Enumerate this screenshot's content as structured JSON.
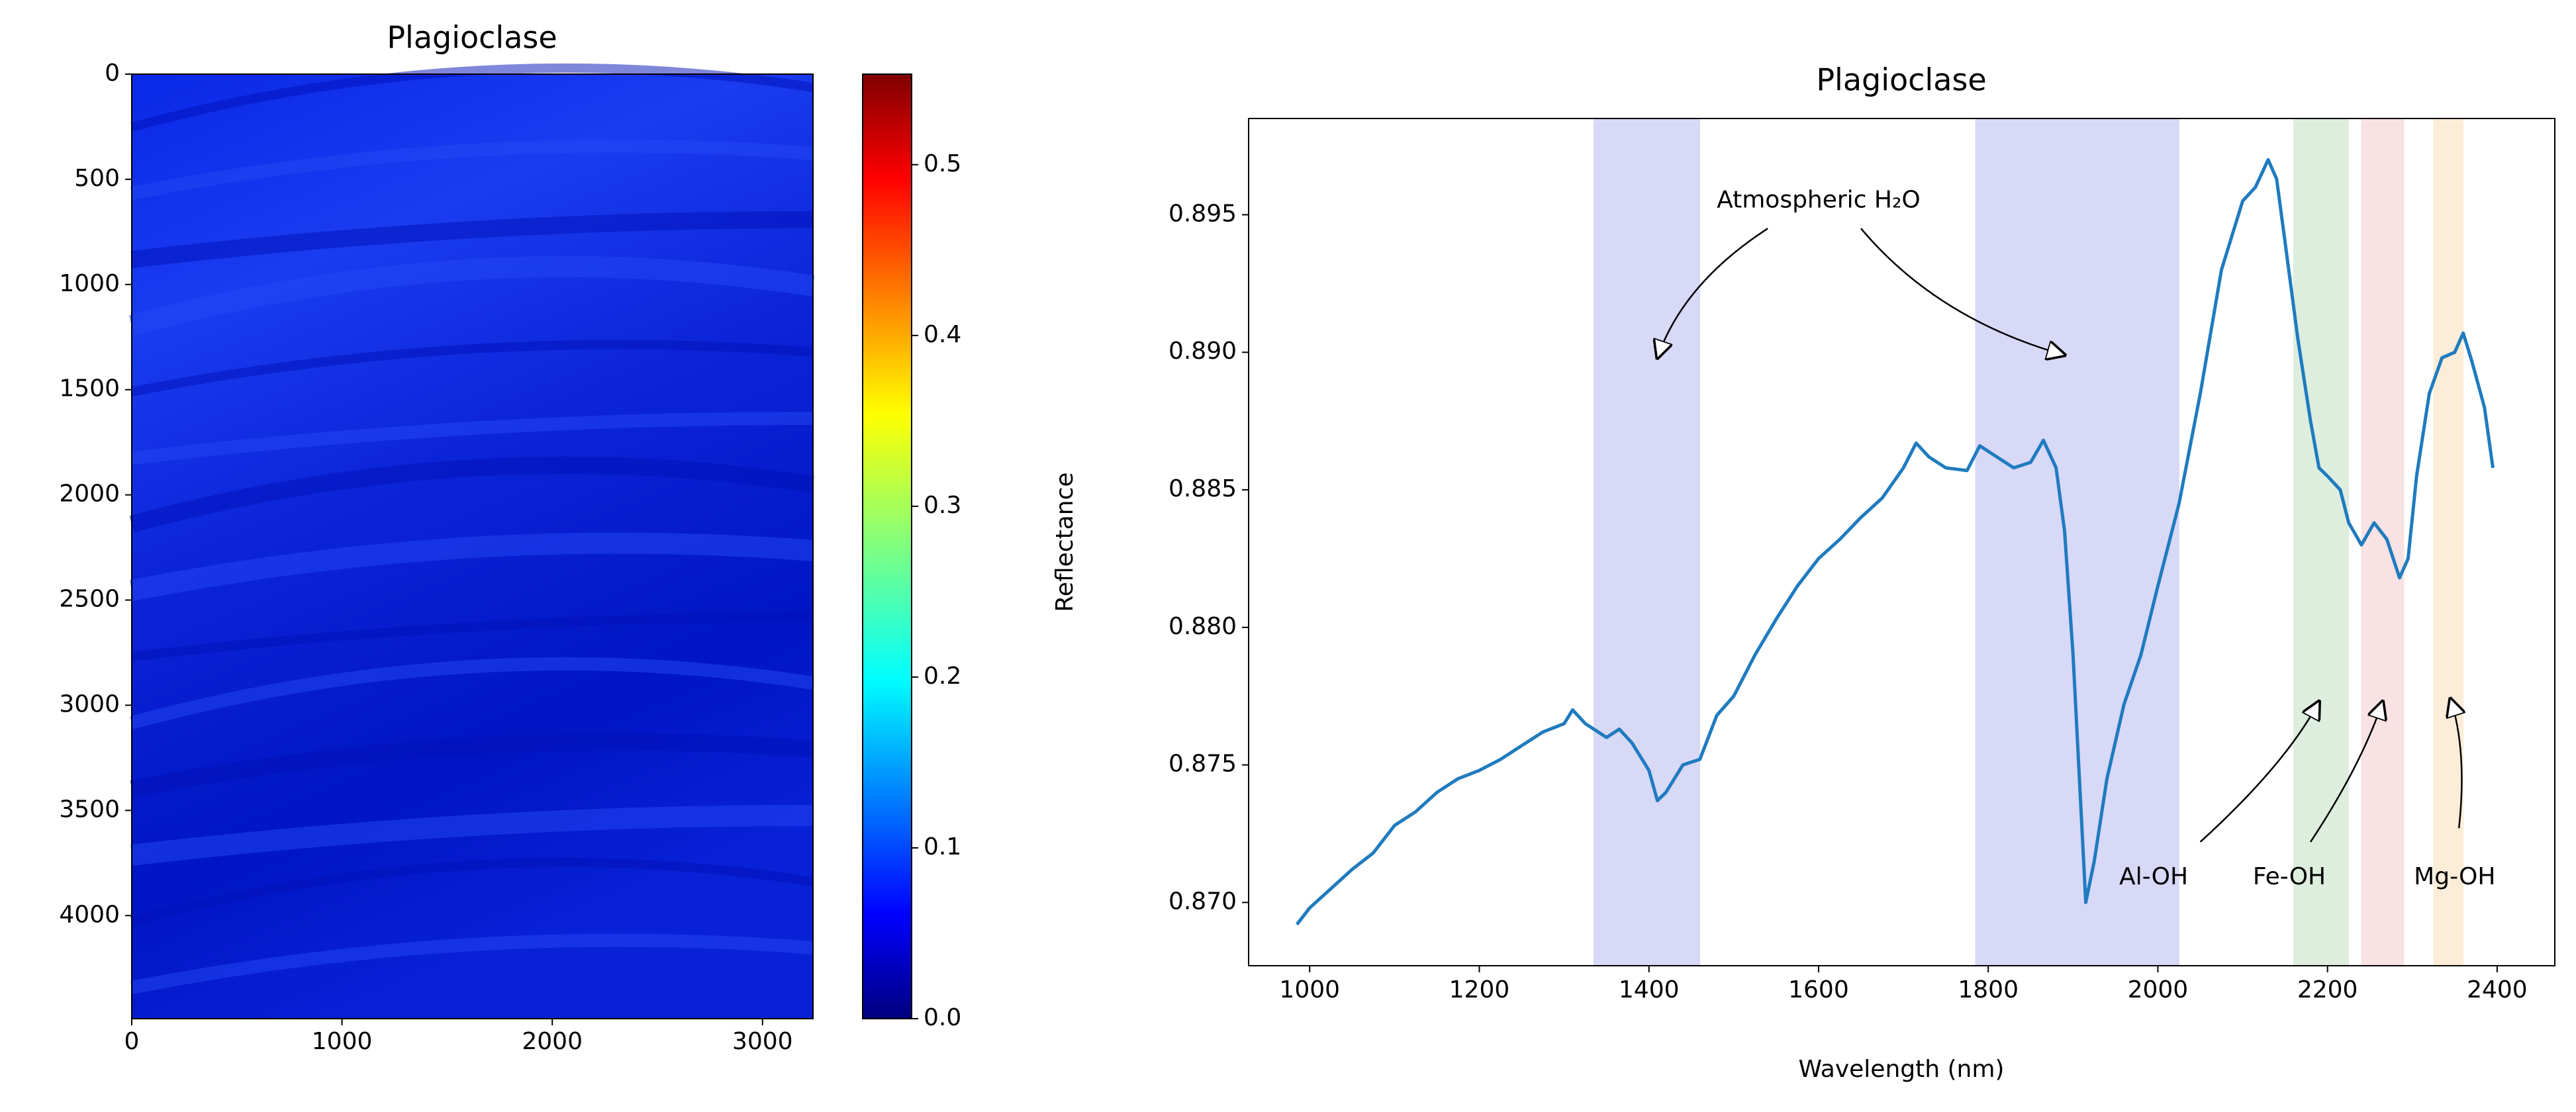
{
  "chart_data": [
    {
      "type": "image",
      "title": "Plagioclase",
      "xlim": [
        0,
        3240
      ],
      "ylim": [
        0,
        4490
      ],
      "y_inverted": true,
      "xticks": [
        0,
        1000,
        2000,
        3000
      ],
      "yticks": [
        0,
        500,
        1000,
        1500,
        2000,
        2500,
        3000,
        3500,
        4000
      ],
      "colorbar": {
        "colormap": "jet",
        "clim": [
          0,
          0.553
        ],
        "ticks": [
          {
            "value": 0,
            "label": "0.0"
          },
          0.1,
          0.2,
          0.3,
          0.4,
          0.5
        ]
      }
    },
    {
      "type": "line",
      "title": "Plagioclase",
      "xlabel": "Wavelength (nm)",
      "ylabel": "Reflectance",
      "xlim": [
        928,
        2468
      ],
      "ylim": [
        0.8677,
        0.8985
      ],
      "xticks": [
        1000,
        1200,
        1400,
        1600,
        1800,
        2000,
        2200,
        2400
      ],
      "yticks": [
        {
          "value": 0.87,
          "label": "0.870"
        },
        0.875,
        {
          "value": 0.88,
          "label": "0.880"
        },
        0.885,
        {
          "value": 0.89,
          "label": "0.890"
        },
        0.895
      ],
      "color": "#1f7bbf",
      "x": [
        985,
        1000,
        1025,
        1050,
        1075,
        1100,
        1125,
        1150,
        1175,
        1200,
        1225,
        1250,
        1275,
        1300,
        1310,
        1325,
        1350,
        1365,
        1380,
        1400,
        1410,
        1420,
        1440,
        1460,
        1480,
        1500,
        1525,
        1550,
        1575,
        1600,
        1625,
        1650,
        1675,
        1700,
        1715,
        1730,
        1750,
        1775,
        1790,
        1810,
        1830,
        1850,
        1865,
        1880,
        1890,
        1900,
        1910,
        1915,
        1925,
        1940,
        1960,
        1980,
        2000,
        2025,
        2050,
        2075,
        2100,
        2115,
        2130,
        2140,
        2150,
        2165,
        2180,
        2190,
        2200,
        2215,
        2225,
        2240,
        2255,
        2270,
        2285,
        2295,
        2305,
        2320,
        2335,
        2350,
        2360,
        2370,
        2385,
        2395
      ],
      "values": [
        0.8692,
        0.8698,
        0.8705,
        0.8712,
        0.8718,
        0.8728,
        0.8733,
        0.874,
        0.8745,
        0.8748,
        0.8752,
        0.8757,
        0.8762,
        0.8765,
        0.877,
        0.8765,
        0.876,
        0.8763,
        0.8758,
        0.8748,
        0.8737,
        0.874,
        0.875,
        0.8752,
        0.8768,
        0.8775,
        0.879,
        0.8803,
        0.8815,
        0.8825,
        0.8832,
        0.884,
        0.8847,
        0.8858,
        0.8867,
        0.8862,
        0.8858,
        0.8857,
        0.8866,
        0.8862,
        0.8858,
        0.886,
        0.8868,
        0.8858,
        0.8835,
        0.879,
        0.873,
        0.87,
        0.8715,
        0.8745,
        0.8772,
        0.879,
        0.8815,
        0.8845,
        0.8885,
        0.893,
        0.8955,
        0.896,
        0.897,
        0.8963,
        0.894,
        0.8905,
        0.8875,
        0.8858,
        0.8855,
        0.885,
        0.8838,
        0.883,
        0.8838,
        0.8832,
        0.8818,
        0.8825,
        0.8855,
        0.8885,
        0.8898,
        0.89,
        0.8907,
        0.8897,
        0.888,
        0.8858
      ],
      "bands": [
        {
          "x0": 1335,
          "x1": 1460,
          "color": "#c8c8f4"
        },
        {
          "x0": 1785,
          "x1": 2025,
          "color": "#c8c8f4"
        },
        {
          "x0": 2160,
          "x1": 2225,
          "color": "#cfe8d2"
        },
        {
          "x0": 2240,
          "x1": 2290,
          "color": "#f6d6d8"
        },
        {
          "x0": 2325,
          "x1": 2360,
          "color": "#fbe6c8"
        }
      ],
      "annotations": [
        "Atmospheric H₂O",
        "Al-OH",
        "Fe-OH",
        "Mg-OH"
      ]
    }
  ]
}
